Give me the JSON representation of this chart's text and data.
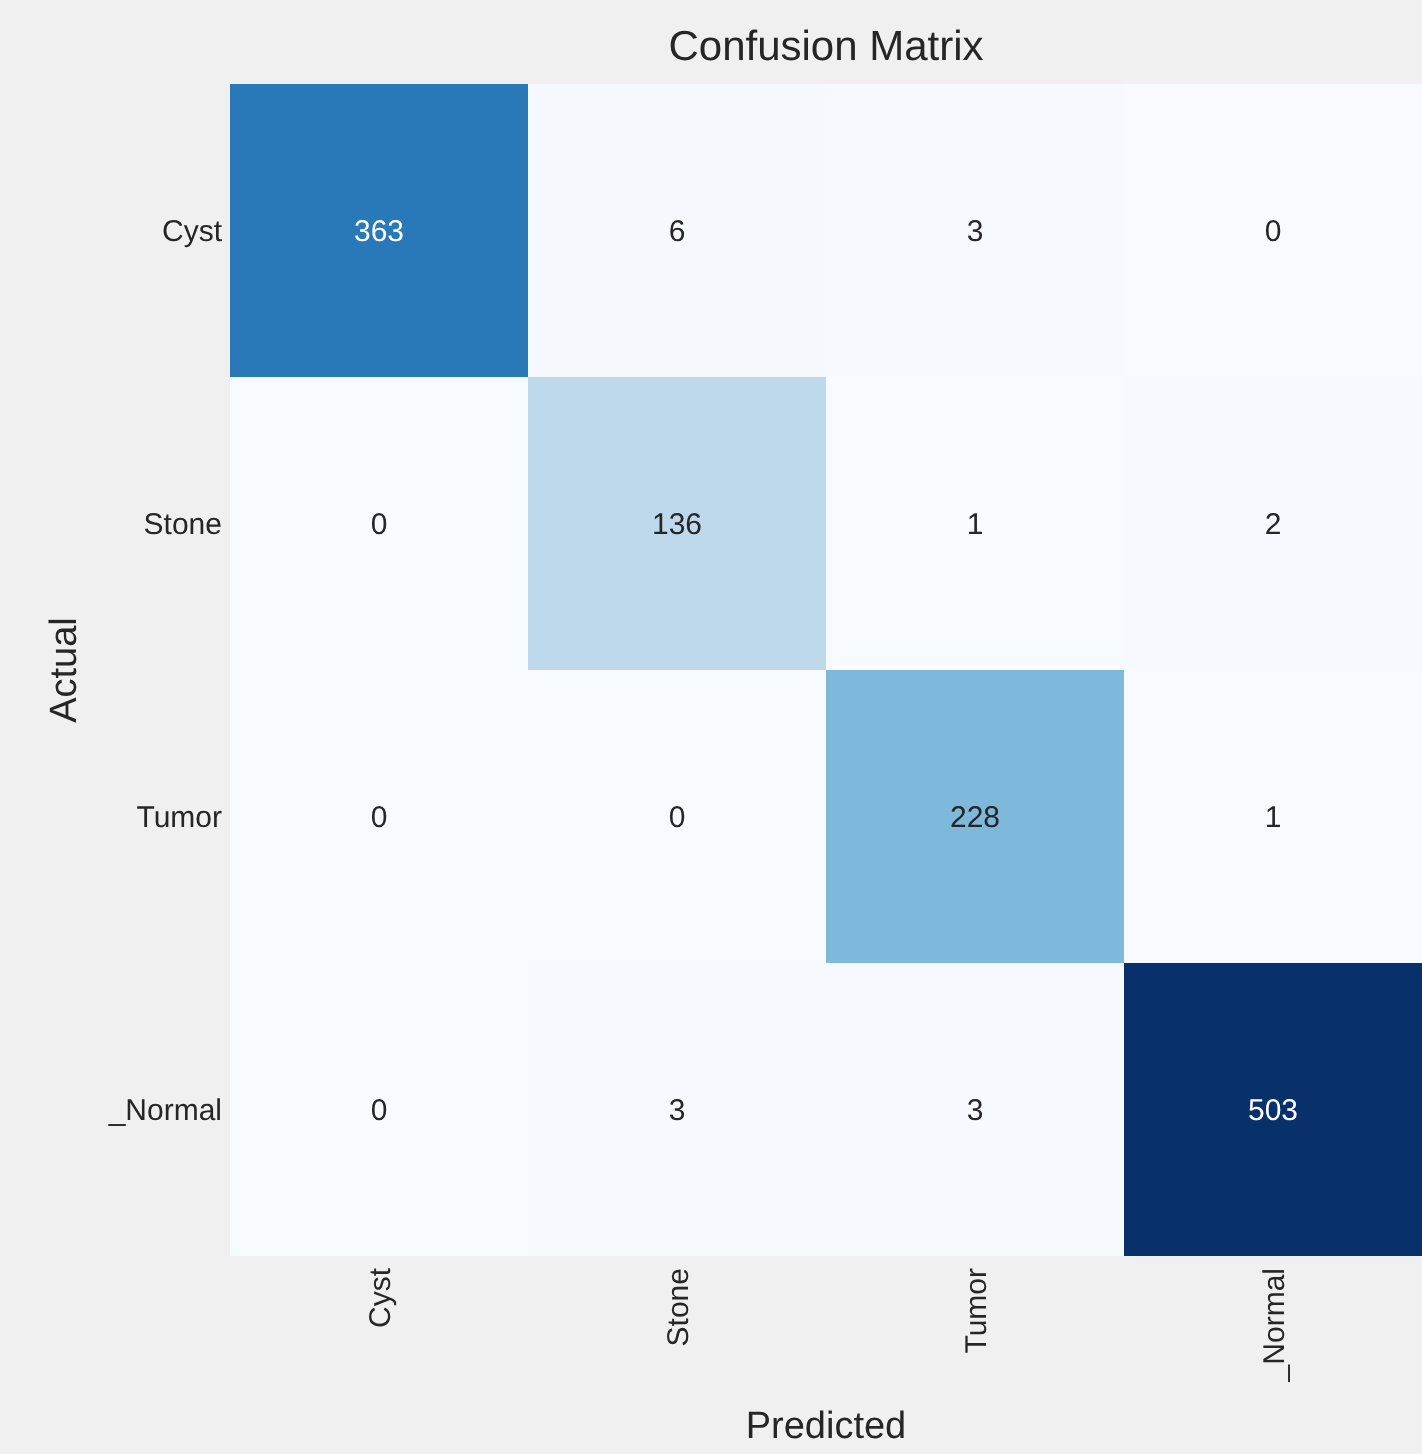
{
  "chart_data": {
    "type": "heatmap",
    "title": "Confusion Matrix",
    "xlabel": "Predicted",
    "ylabel": "Actual",
    "categories": [
      "Cyst",
      "Stone",
      "Tumor",
      "_Normal"
    ],
    "y_categories": [
      "Cyst",
      "Stone",
      "Tumor",
      "_Normal"
    ],
    "cells": [
      [
        363,
        6,
        3,
        0
      ],
      [
        0,
        136,
        1,
        2
      ],
      [
        0,
        0,
        228,
        1
      ],
      [
        0,
        3,
        3,
        503
      ]
    ],
    "data_labels": true
  }
}
